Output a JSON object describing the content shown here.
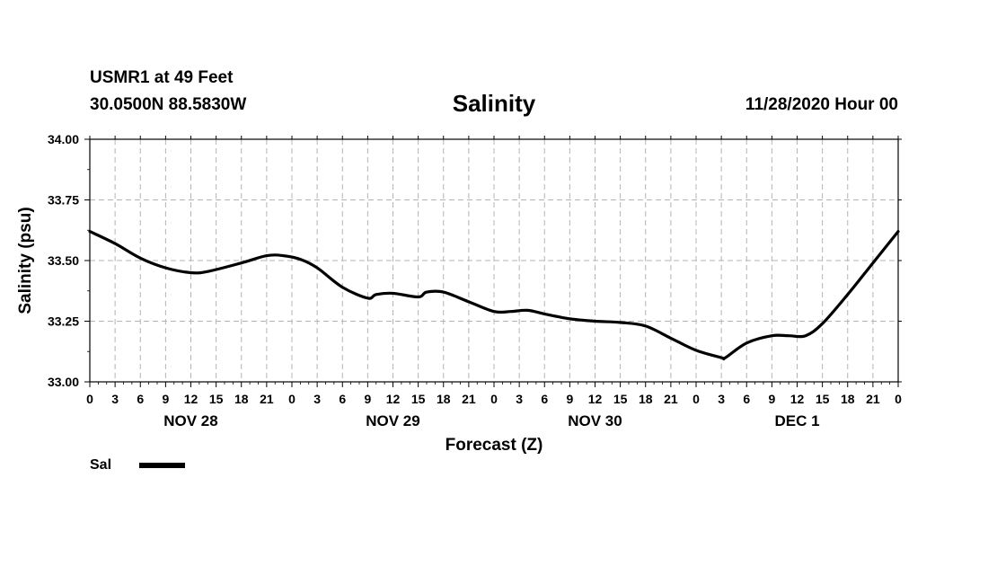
{
  "header": {
    "station": "USMR1 at 49 Feet",
    "coords": "30.0500N 88.5830W",
    "title": "Salinity",
    "datetime": "11/28/2020 Hour 00"
  },
  "legend": {
    "label": "Sal"
  },
  "colors": {
    "line": "#000000",
    "grid": "#b4b4b4",
    "background": "#ffffff"
  },
  "chart_data": {
    "type": "line",
    "title": "Salinity",
    "xlabel": "Forecast (Z)",
    "ylabel": "Salinity (psu)",
    "ylim": [
      33.0,
      34.0
    ],
    "xlim": [
      0,
      96
    ],
    "grid": true,
    "legend_position": "bottom-left",
    "yticks": [
      33.0,
      33.25,
      33.5,
      33.75,
      34.0
    ],
    "ytick_labels": [
      "33.00",
      "33.25",
      "33.50",
      "33.75",
      "34.00"
    ],
    "xticks": [
      0,
      3,
      6,
      9,
      12,
      15,
      18,
      21,
      24,
      27,
      30,
      33,
      36,
      39,
      42,
      45,
      48,
      51,
      54,
      57,
      60,
      63,
      66,
      69,
      72,
      75,
      78,
      81,
      84,
      87,
      90,
      93,
      96
    ],
    "xtick_labels": [
      "0",
      "3",
      "6",
      "9",
      "12",
      "15",
      "18",
      "21",
      "0",
      "3",
      "6",
      "9",
      "12",
      "15",
      "18",
      "21",
      "0",
      "3",
      "6",
      "9",
      "12",
      "15",
      "18",
      "21",
      "0",
      "3",
      "6",
      "9",
      "12",
      "15",
      "18",
      "21",
      "0"
    ],
    "day_labels": [
      {
        "label": "NOV 28",
        "x": 12
      },
      {
        "label": "NOV 29",
        "x": 36
      },
      {
        "label": "NOV 30",
        "x": 60
      },
      {
        "label": "DEC 1",
        "x": 84
      }
    ],
    "series": [
      {
        "name": "Sal",
        "x": [
          0,
          3,
          6,
          9,
          12,
          14,
          18,
          21,
          23,
          25,
          27,
          30,
          33,
          34,
          36,
          39,
          40,
          42,
          45,
          48,
          50,
          52,
          54,
          57,
          60,
          63,
          66,
          69,
          72,
          75,
          75.5,
          78,
          81,
          83,
          85,
          87,
          90,
          93,
          96
        ],
        "values": [
          33.62,
          33.57,
          33.51,
          33.47,
          33.45,
          33.455,
          33.49,
          33.52,
          33.52,
          33.505,
          33.47,
          33.39,
          33.345,
          33.36,
          33.365,
          33.35,
          33.37,
          33.37,
          33.33,
          33.29,
          33.29,
          33.295,
          33.28,
          33.26,
          33.25,
          33.245,
          33.23,
          33.18,
          33.13,
          33.1,
          33.1,
          33.16,
          33.19,
          33.19,
          33.19,
          33.24,
          33.36,
          33.49,
          33.62
        ]
      }
    ]
  }
}
